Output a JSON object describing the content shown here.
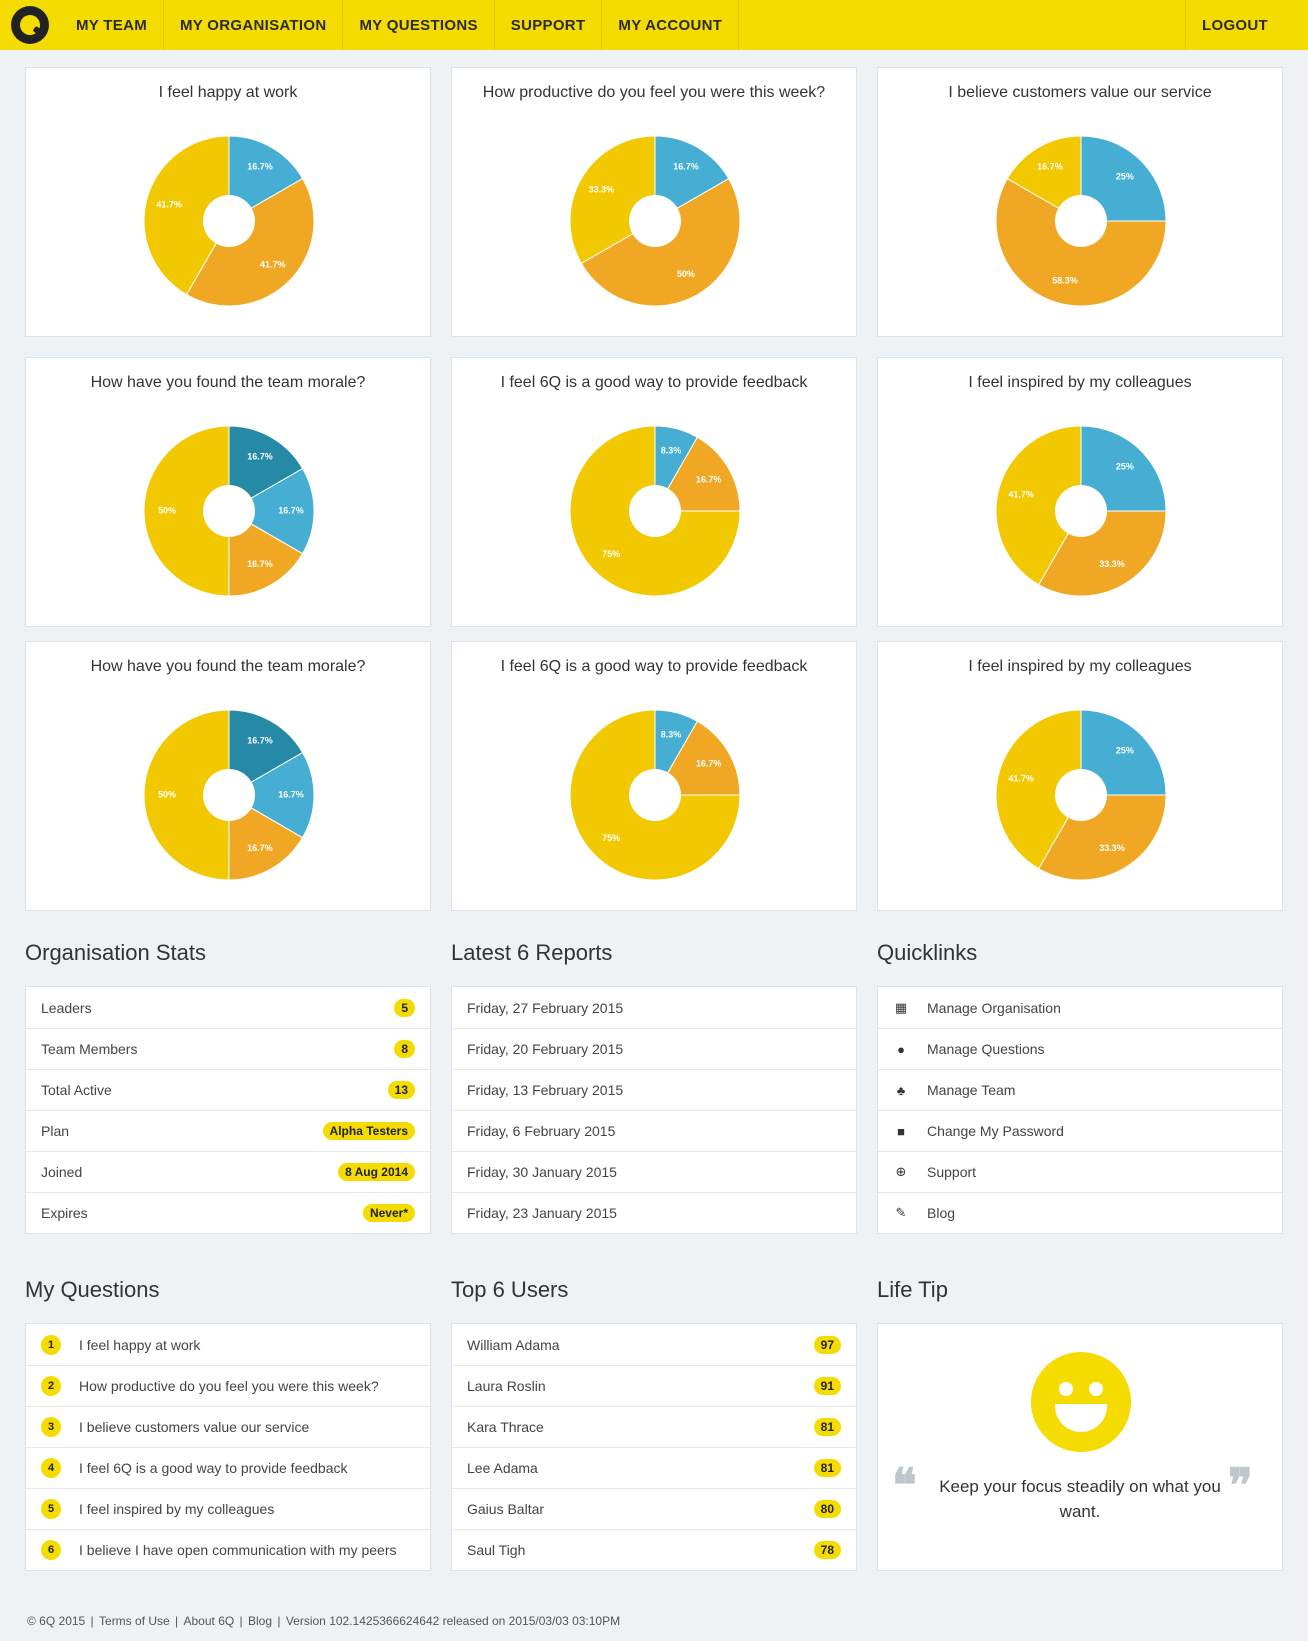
{
  "nav": {
    "items": [
      "MY TEAM",
      "MY ORGANISATION",
      "MY QUESTIONS",
      "SUPPORT",
      "MY ACCOUNT"
    ],
    "logout": "LOGOUT"
  },
  "colors": {
    "accent": "#f5dc00",
    "slice_blue": "#45aed2",
    "slice_teal": "#2689a6",
    "slice_orange": "#f0a824",
    "slice_yellow": "#f2c800"
  },
  "chart_data": [
    {
      "type": "pie",
      "title": "I feel happy at work",
      "slices": [
        {
          "value": 16.7,
          "label": "16.7%",
          "color": "#45aed2"
        },
        {
          "value": 41.7,
          "label": "41.7%",
          "color": "#f0a824"
        },
        {
          "value": 41.7,
          "label": "41.7%",
          "color": "#f2c800"
        }
      ]
    },
    {
      "type": "pie",
      "title": "How productive do you feel you were this week?",
      "slices": [
        {
          "value": 16.7,
          "label": "16.7%",
          "color": "#45aed2"
        },
        {
          "value": 50,
          "label": "50%",
          "color": "#f0a824"
        },
        {
          "value": 33.3,
          "label": "33.3%",
          "color": "#f2c800"
        }
      ]
    },
    {
      "type": "pie",
      "title": "I believe customers value our service",
      "slices": [
        {
          "value": 25,
          "label": "25%",
          "color": "#45aed2"
        },
        {
          "value": 58.3,
          "label": "58.3%",
          "color": "#f0a824"
        },
        {
          "value": 16.7,
          "label": "16.7%",
          "color": "#f2c800"
        }
      ]
    },
    {
      "type": "pie",
      "title": "How have you found the team morale?",
      "slices": [
        {
          "value": 16.7,
          "label": "16.7%",
          "color": "#2689a6"
        },
        {
          "value": 16.7,
          "label": "16.7%",
          "color": "#45aed2"
        },
        {
          "value": 16.7,
          "label": "16.7%",
          "color": "#f0a824"
        },
        {
          "value": 50,
          "label": "50%",
          "color": "#f2c800"
        }
      ]
    },
    {
      "type": "pie",
      "title": "I feel 6Q is a good way to provide feedback",
      "slices": [
        {
          "value": 8.3,
          "label": "8.3%",
          "color": "#45aed2"
        },
        {
          "value": 16.7,
          "label": "16.7%",
          "color": "#f0a824"
        },
        {
          "value": 75,
          "label": "75%",
          "color": "#f2c800"
        }
      ]
    },
    {
      "type": "pie",
      "title": "I feel inspired by my colleagues",
      "slices": [
        {
          "value": 25,
          "label": "25%",
          "color": "#45aed2"
        },
        {
          "value": 33.3,
          "label": "33.3%",
          "color": "#f0a824"
        },
        {
          "value": 41.7,
          "label": "41.7%",
          "color": "#f2c800"
        }
      ]
    },
    {
      "type": "pie",
      "title": "How have you found the team morale?",
      "slices": [
        {
          "value": 16.7,
          "label": "16.7%",
          "color": "#2689a6"
        },
        {
          "value": 16.7,
          "label": "16.7%",
          "color": "#45aed2"
        },
        {
          "value": 16.7,
          "label": "16.7%",
          "color": "#f0a824"
        },
        {
          "value": 50,
          "label": "50%",
          "color": "#f2c800"
        }
      ]
    },
    {
      "type": "pie",
      "title": "I feel 6Q is a good way to provide feedback",
      "slices": [
        {
          "value": 8.3,
          "label": "8.3%",
          "color": "#45aed2"
        },
        {
          "value": 16.7,
          "label": "16.7%",
          "color": "#f0a824"
        },
        {
          "value": 75,
          "label": "75%",
          "color": "#f2c800"
        }
      ]
    },
    {
      "type": "pie",
      "title": "I feel inspired by my colleagues",
      "slices": [
        {
          "value": 25,
          "label": "25%",
          "color": "#45aed2"
        },
        {
          "value": 33.3,
          "label": "33.3%",
          "color": "#f0a824"
        },
        {
          "value": 41.7,
          "label": "41.7%",
          "color": "#f2c800"
        }
      ]
    }
  ],
  "org_stats": {
    "title": "Organisation Stats",
    "rows": [
      {
        "label": "Leaders",
        "value": "5"
      },
      {
        "label": "Team Members",
        "value": "8"
      },
      {
        "label": "Total Active",
        "value": "13"
      },
      {
        "label": "Plan",
        "value": "Alpha Testers"
      },
      {
        "label": "Joined",
        "value": "8 Aug 2014"
      },
      {
        "label": "Expires",
        "value": "Never*"
      }
    ]
  },
  "reports": {
    "title": "Latest 6 Reports",
    "rows": [
      "Friday, 27 February 2015",
      "Friday, 20 February 2015",
      "Friday, 13 February 2015",
      "Friday, 6 February 2015",
      "Friday, 30 January 2015",
      "Friday, 23 January 2015"
    ]
  },
  "quicklinks": {
    "title": "Quicklinks",
    "rows": [
      {
        "label": "Manage Organisation",
        "icon": "building-icon",
        "glyph": "▦"
      },
      {
        "label": "Manage Questions",
        "icon": "speech-bubble-icon",
        "glyph": "●"
      },
      {
        "label": "Manage Team",
        "icon": "users-icon",
        "glyph": "♣"
      },
      {
        "label": "Change My Password",
        "icon": "lock-icon",
        "glyph": "■"
      },
      {
        "label": "Support",
        "icon": "lifebuoy-icon",
        "glyph": "⊕"
      },
      {
        "label": "Blog",
        "icon": "pencil-icon",
        "glyph": "✎"
      }
    ]
  },
  "my_questions": {
    "title": "My Questions",
    "rows": [
      {
        "num": "1",
        "text": "I feel happy at work"
      },
      {
        "num": "2",
        "text": "How productive do you feel you were this week?"
      },
      {
        "num": "3",
        "text": "I believe customers value our service"
      },
      {
        "num": "4",
        "text": "I feel 6Q is a good way to provide feedback"
      },
      {
        "num": "5",
        "text": "I feel inspired by my colleagues"
      },
      {
        "num": "6",
        "text": "I believe I have open communication with my peers"
      }
    ]
  },
  "top_users": {
    "title": "Top 6 Users",
    "rows": [
      {
        "name": "William Adama",
        "score": "97"
      },
      {
        "name": "Laura Roslin",
        "score": "91"
      },
      {
        "name": "Kara Thrace",
        "score": "81"
      },
      {
        "name": "Lee Adama",
        "score": "81"
      },
      {
        "name": "Gaius Baltar",
        "score": "80"
      },
      {
        "name": "Saul Tigh",
        "score": "78"
      }
    ]
  },
  "life_tip": {
    "title": "Life Tip",
    "open_quote": "❝",
    "close_quote": "❞",
    "text": "Keep your focus steadily on what you want."
  },
  "footer": {
    "copyright": "© 6Q 2015",
    "links": [
      "Terms of Use",
      "About 6Q",
      "Blog"
    ],
    "version": "Version 102.1425366624642 released on 2015/03/03 03:10PM"
  }
}
